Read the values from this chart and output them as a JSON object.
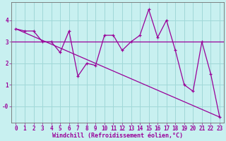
{
  "title": "",
  "xlabel": "Windchill (Refroidissement éolien,°C)",
  "ylabel": "",
  "bg_color": "#c8f0f0",
  "line_color": "#990099",
  "grid_color": "#a0d8d8",
  "text_color": "#990099",
  "x_data": [
    0,
    1,
    2,
    3,
    4,
    5,
    6,
    7,
    8,
    9,
    10,
    11,
    12,
    13,
    14,
    15,
    16,
    17,
    18,
    19,
    20,
    21,
    22,
    23
  ],
  "y_main": [
    3.6,
    3.5,
    3.5,
    3.0,
    3.0,
    2.5,
    3.5,
    1.4,
    2.0,
    1.9,
    3.3,
    3.3,
    2.6,
    3.0,
    3.3,
    4.5,
    3.2,
    4.0,
    2.6,
    1.0,
    0.7,
    3.0,
    1.5,
    -0.5
  ],
  "y_flat": 3.0,
  "y_trend_start": 3.6,
  "y_trend_end": -0.5,
  "ylim": [
    -0.75,
    4.85
  ],
  "xlim": [
    -0.5,
    23.5
  ],
  "yticks": [
    0,
    1,
    2,
    3,
    4
  ],
  "ytick_labels": [
    "-0",
    "1",
    "2",
    "3",
    "4"
  ],
  "xticks": [
    0,
    1,
    2,
    3,
    4,
    5,
    6,
    7,
    8,
    9,
    10,
    11,
    12,
    13,
    14,
    15,
    16,
    17,
    18,
    19,
    20,
    21,
    22,
    23
  ],
  "tick_fontsize": 5.5,
  "xlabel_fontsize": 6.0,
  "xlabel_fontweight": "bold"
}
